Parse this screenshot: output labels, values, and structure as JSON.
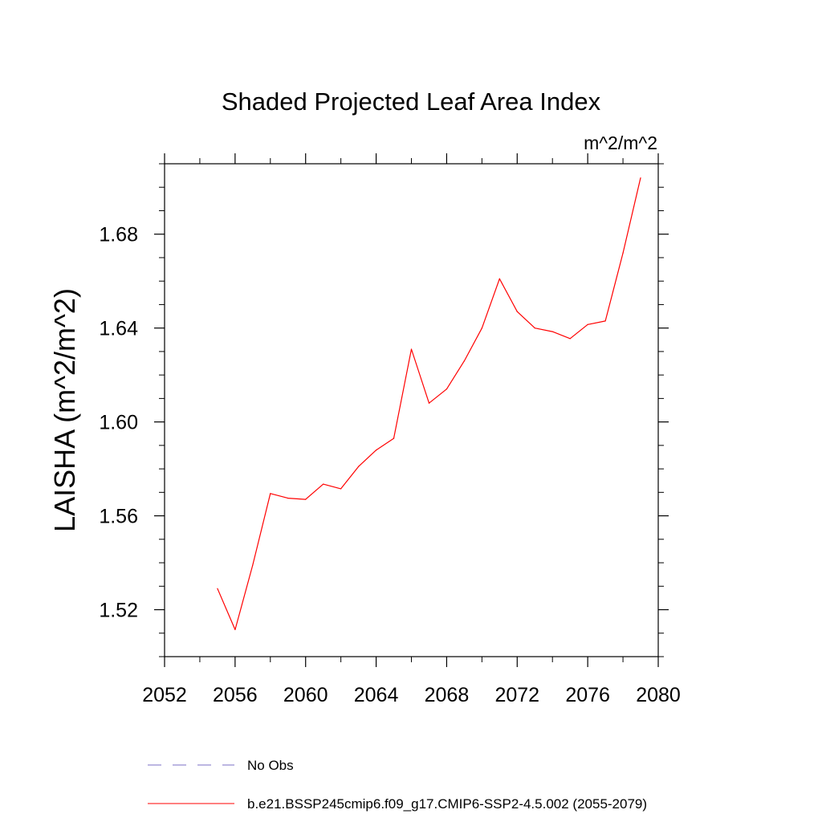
{
  "chart_data": {
    "type": "line",
    "title": "Shaded Projected Leaf Area Index",
    "units_label": "m^2/m^2",
    "ylabel": "LAISHA  (m^2/m^2)",
    "xlabel": "",
    "xlim": [
      2052,
      2080
    ],
    "ylim": [
      1.5,
      1.71
    ],
    "x_ticks": [
      2052,
      2056,
      2060,
      2064,
      2068,
      2072,
      2076,
      2080
    ],
    "x_tick_labels": [
      "2052",
      "2056",
      "2060",
      "2064",
      "2068",
      "2072",
      "2076",
      "2080"
    ],
    "y_ticks": [
      1.52,
      1.56,
      1.6,
      1.64,
      1.68
    ],
    "y_tick_labels": [
      "1.52",
      "1.56",
      "1.60",
      "1.64",
      "1.68"
    ],
    "grid": false,
    "legend_position": "bottom",
    "series": [
      {
        "name": "b.e21.BSSP245cmip6.f09_g17.CMIP6-SSP2-4.5.002 (2055-2079)",
        "color": "#ff0000",
        "style": "solid",
        "x": [
          2055,
          2056,
          2057,
          2058,
          2059,
          2060,
          2061,
          2062,
          2063,
          2064,
          2065,
          2066,
          2067,
          2068,
          2069,
          2070,
          2071,
          2072,
          2073,
          2074,
          2075,
          2076,
          2077,
          2078,
          2079
        ],
        "y": [
          1.529,
          1.5115,
          1.539,
          1.5695,
          1.5675,
          1.567,
          1.5735,
          1.5715,
          1.581,
          1.588,
          1.593,
          1.631,
          1.608,
          1.614,
          1.626,
          1.64,
          1.661,
          1.647,
          1.64,
          1.6385,
          1.6355,
          1.6415,
          1.643,
          1.672,
          1.704
        ]
      }
    ],
    "legend": [
      {
        "label": "No Obs",
        "color": "#7a6fc4",
        "style": "dashed"
      },
      {
        "label": "b.e21.BSSP245cmip6.f09_g17.CMIP6-SSP2-4.5.002 (2055-2079)",
        "color": "#ff0000",
        "style": "solid"
      }
    ]
  }
}
